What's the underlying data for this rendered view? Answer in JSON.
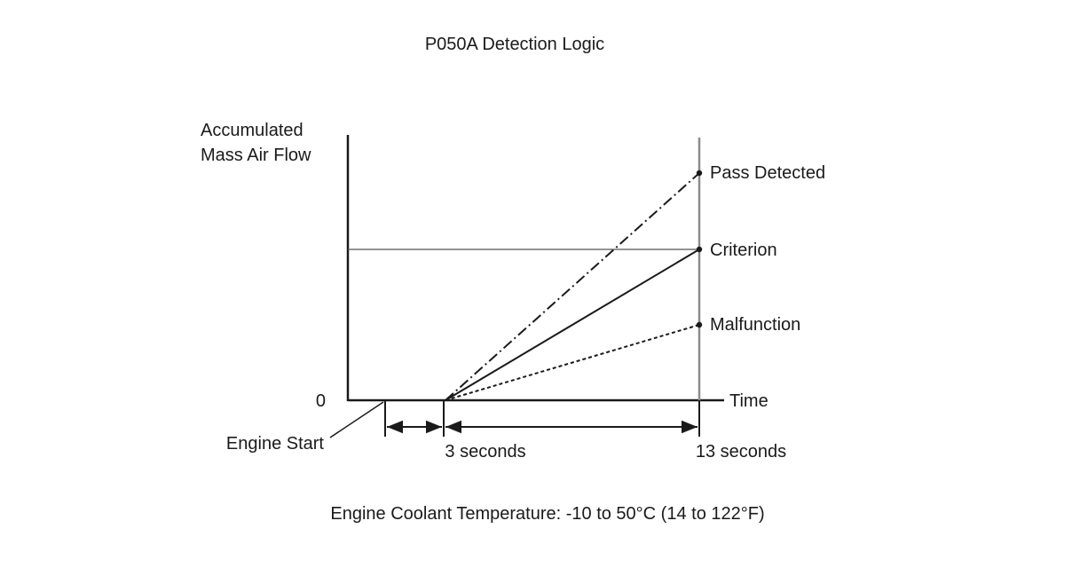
{
  "title": "P050A Detection Logic",
  "y_axis": {
    "label_line1": "Accumulated",
    "label_line2": "Mass Air Flow",
    "zero_label": "0"
  },
  "x_axis": {
    "label": "Time"
  },
  "lines": {
    "pass": "Pass Detected",
    "criterion": "Criterion",
    "malfunction": "Malfunction"
  },
  "timeline": {
    "engine_start": "Engine Start",
    "interval1": "3 seconds",
    "interval2": "13 seconds"
  },
  "footer": "Engine Coolant Temperature: -10 to 50°C (14 to 122°F)",
  "colors": {
    "ink": "#1a1a1a",
    "frame": "#8c8c8c",
    "background": "#ffffff"
  }
}
